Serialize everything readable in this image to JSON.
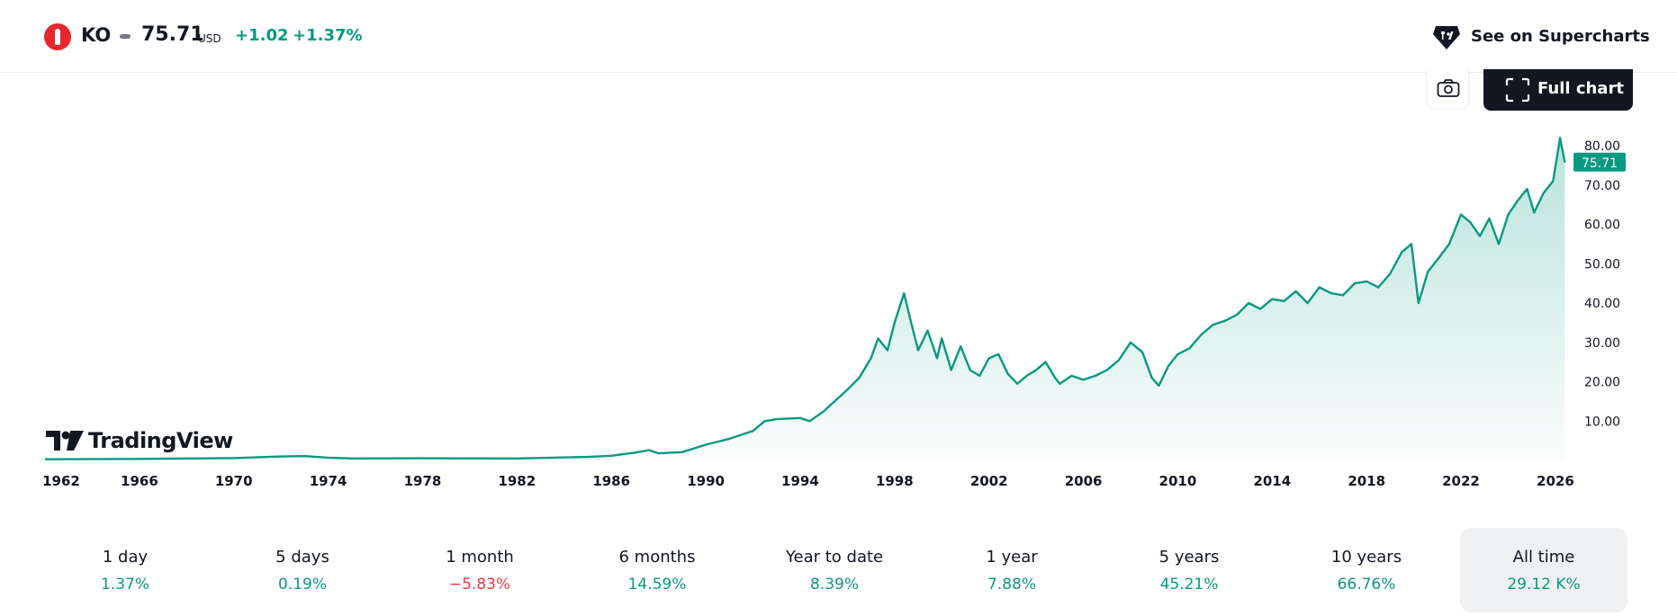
{
  "header": {
    "symbol": "KO",
    "price": "75.71",
    "currency": "USD",
    "change_abs": "+1.02",
    "change_pct": "+1.37%",
    "supercharts_label": "See on Supercharts",
    "full_chart_label": "Full chart"
  },
  "icons": {
    "symbol_logo": "coca-cola-bottle-icon",
    "supercharts": "tradingview-supercharts-icon",
    "camera": "camera-icon",
    "fullscreen": "fullscreen-icon",
    "brand": "tradingview-logo"
  },
  "brand": {
    "name": "TradingView"
  },
  "colors": {
    "line": "#089981",
    "positive": "#089981",
    "negative": "#f23645",
    "logo_red": "#e8262d",
    "dark": "#131722"
  },
  "chart_data": {
    "type": "area",
    "x_ticks": [
      "1962",
      "1966",
      "1970",
      "1974",
      "1978",
      "1982",
      "1986",
      "1990",
      "1994",
      "1998",
      "2002",
      "2006",
      "2010",
      "2014",
      "2018",
      "2022",
      "2026"
    ],
    "y_ticks": [
      "10.00",
      "20.00",
      "30.00",
      "40.00",
      "50.00",
      "60.00",
      "70.00",
      "80.00"
    ],
    "ylim": [
      0,
      80
    ],
    "xlim": [
      1962,
      2026.5
    ],
    "last_value_label": "75.71",
    "grid": false,
    "series": [
      {
        "points": [
          [
            1962,
            0.3
          ],
          [
            1966,
            0.4
          ],
          [
            1970,
            0.6
          ],
          [
            1972,
            1.0
          ],
          [
            1973,
            1.1
          ],
          [
            1974,
            0.7
          ],
          [
            1975,
            0.5
          ],
          [
            1978,
            0.55
          ],
          [
            1982,
            0.5
          ],
          [
            1985,
            0.9
          ],
          [
            1986,
            1.2
          ],
          [
            1987,
            2.0
          ],
          [
            1987.6,
            2.6
          ],
          [
            1988,
            1.8
          ],
          [
            1989,
            2.1
          ],
          [
            1990,
            4.0
          ],
          [
            1991,
            5.5
          ],
          [
            1992,
            7.5
          ],
          [
            1992.5,
            10.0
          ],
          [
            1993,
            10.5
          ],
          [
            1994,
            10.8
          ],
          [
            1994.4,
            10.0
          ],
          [
            1995,
            12.5
          ],
          [
            1996,
            18.0
          ],
          [
            1996.5,
            21.0
          ],
          [
            1997,
            26.0
          ],
          [
            1997.3,
            31.0
          ],
          [
            1997.7,
            28.0
          ],
          [
            1998,
            35.0
          ],
          [
            1998.4,
            42.5
          ],
          [
            1998.7,
            35.0
          ],
          [
            1999,
            28.0
          ],
          [
            1999.4,
            33.0
          ],
          [
            1999.8,
            26.0
          ],
          [
            2000,
            31.0
          ],
          [
            2000.4,
            23.0
          ],
          [
            2000.8,
            29.0
          ],
          [
            2001.2,
            23.0
          ],
          [
            2001.6,
            21.5
          ],
          [
            2002,
            26.0
          ],
          [
            2002.4,
            27.0
          ],
          [
            2002.8,
            22.0
          ],
          [
            2003.2,
            19.5
          ],
          [
            2003.6,
            21.5
          ],
          [
            2004,
            23.0
          ],
          [
            2004.4,
            25.0
          ],
          [
            2004.8,
            21.0
          ],
          [
            2005,
            19.5
          ],
          [
            2005.5,
            21.5
          ],
          [
            2006,
            20.5
          ],
          [
            2006.5,
            21.5
          ],
          [
            2007,
            23.0
          ],
          [
            2007.5,
            25.5
          ],
          [
            2008,
            30.0
          ],
          [
            2008.5,
            27.5
          ],
          [
            2008.9,
            21.0
          ],
          [
            2009.2,
            19.0
          ],
          [
            2009.6,
            24.0
          ],
          [
            2010,
            27.0
          ],
          [
            2010.5,
            28.5
          ],
          [
            2011,
            32.0
          ],
          [
            2011.5,
            34.5
          ],
          [
            2012,
            35.5
          ],
          [
            2012.5,
            37.0
          ],
          [
            2013,
            40.0
          ],
          [
            2013.5,
            38.5
          ],
          [
            2014,
            41.0
          ],
          [
            2014.5,
            40.5
          ],
          [
            2015,
            43.0
          ],
          [
            2015.5,
            40.0
          ],
          [
            2016,
            44.0
          ],
          [
            2016.5,
            42.5
          ],
          [
            2017,
            42.0
          ],
          [
            2017.5,
            45.0
          ],
          [
            2018,
            45.5
          ],
          [
            2018.5,
            44.0
          ],
          [
            2019,
            47.5
          ],
          [
            2019.5,
            53.0
          ],
          [
            2019.9,
            55.0
          ],
          [
            2020.2,
            40.0
          ],
          [
            2020.6,
            48.0
          ],
          [
            2021,
            51.0
          ],
          [
            2021.5,
            55.0
          ],
          [
            2022,
            62.5
          ],
          [
            2022.4,
            60.5
          ],
          [
            2022.8,
            57.0
          ],
          [
            2023.2,
            61.5
          ],
          [
            2023.6,
            55.0
          ],
          [
            2024,
            62.5
          ],
          [
            2024.4,
            66.0
          ],
          [
            2024.8,
            69.0
          ],
          [
            2025.1,
            63.0
          ],
          [
            2025.5,
            68.0
          ],
          [
            2025.9,
            71.0
          ],
          [
            2026.2,
            82.0
          ],
          [
            2026.4,
            75.71
          ]
        ]
      }
    ]
  },
  "periods": [
    {
      "label": "1 day",
      "value": "1.37%",
      "sign": "pos"
    },
    {
      "label": "5 days",
      "value": "0.19%",
      "sign": "pos"
    },
    {
      "label": "1 month",
      "value": "−5.83%",
      "sign": "neg"
    },
    {
      "label": "6 months",
      "value": "14.59%",
      "sign": "pos"
    },
    {
      "label": "Year to date",
      "value": "8.39%",
      "sign": "pos"
    },
    {
      "label": "1 year",
      "value": "7.88%",
      "sign": "pos"
    },
    {
      "label": "5 years",
      "value": "45.21%",
      "sign": "pos"
    },
    {
      "label": "10 years",
      "value": "66.76%",
      "sign": "pos"
    },
    {
      "label": "All time",
      "value": "29.12 K%",
      "sign": "pos",
      "active": true
    }
  ]
}
